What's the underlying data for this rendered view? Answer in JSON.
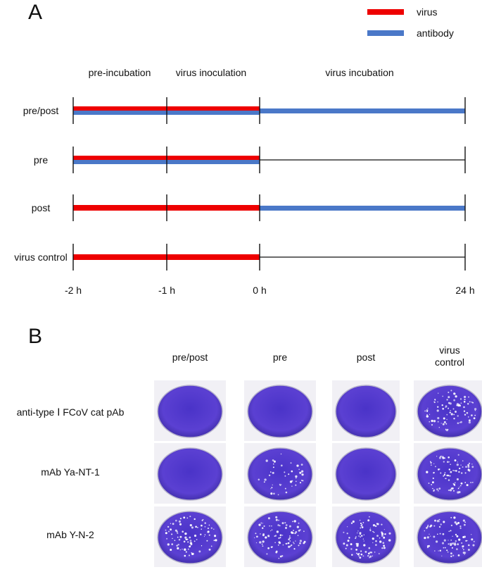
{
  "panel_a": {
    "letter": "A",
    "legend": [
      {
        "label": "virus",
        "color": "#ee0000"
      },
      {
        "label": "antibody",
        "color": "#4a78c8"
      }
    ],
    "phases": [
      "pre-incubation",
      "virus inoculation",
      "virus incubation"
    ],
    "time_points": [
      "-2 h",
      "-1 h",
      "0 h",
      "24 h"
    ],
    "time_values": [
      -2,
      -1,
      0,
      24
    ],
    "rows": [
      {
        "label": "pre/post",
        "virus": [
          -2,
          0
        ],
        "antibody": [
          [
            -2,
            0
          ],
          [
            0,
            24
          ]
        ]
      },
      {
        "label": "pre",
        "virus": [
          -2,
          0
        ],
        "antibody": [
          [
            -2,
            0
          ]
        ]
      },
      {
        "label": "post",
        "virus": [
          -2,
          0
        ],
        "antibody": [
          [
            0,
            24
          ]
        ]
      },
      {
        "label": "virus control",
        "virus": [
          -2,
          0
        ],
        "antibody": []
      }
    ]
  },
  "panel_b": {
    "letter": "B",
    "columns": [
      "pre/post",
      "pre",
      "post",
      "virus control"
    ],
    "rows": [
      {
        "label": "anti-type Ⅰ FCoV cat pAb",
        "plaque_level": [
          0,
          0,
          0,
          3
        ]
      },
      {
        "label": "mAb Ya-NT-1",
        "plaque_level": [
          0,
          2,
          0,
          3
        ]
      },
      {
        "label": "mAb Y-N-2",
        "plaque_level": [
          3,
          3,
          3,
          3
        ]
      }
    ],
    "well_color": "#5b3fd0"
  }
}
